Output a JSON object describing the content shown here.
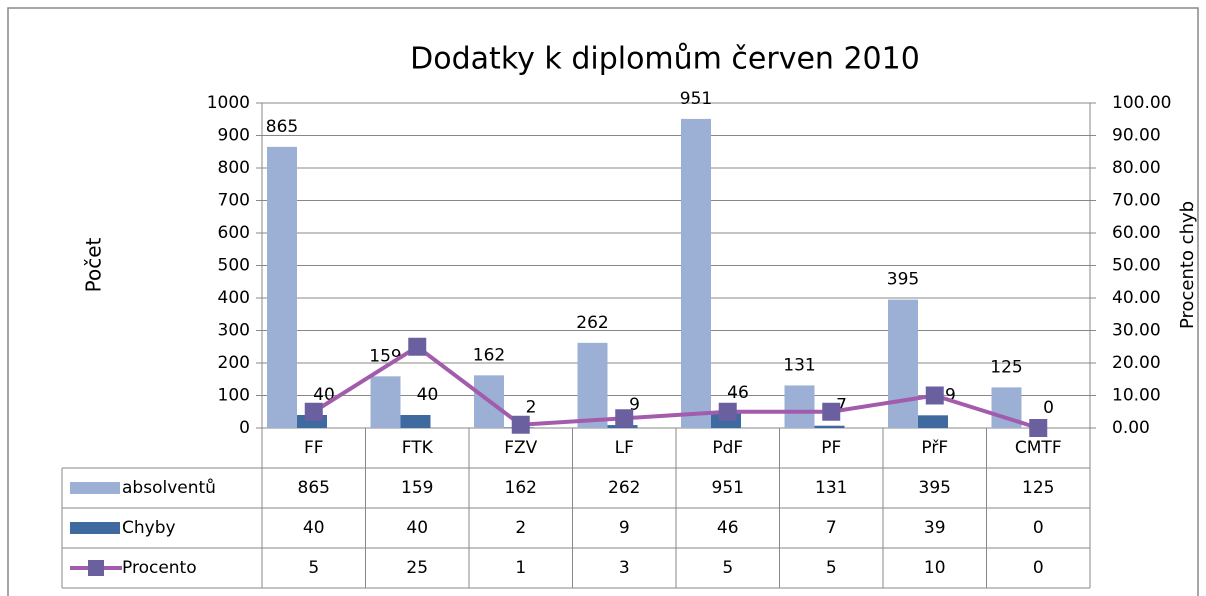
{
  "chart_data": {
    "type": "bar",
    "title": "Dodatky k diplomům červen 2010",
    "y_label": "Počet",
    "y2_label": "Procento chyb",
    "categories": [
      "FF",
      "FTK",
      "FZV",
      "LF",
      "PdF",
      "PF",
      "PřF",
      "CMTF"
    ],
    "series": [
      {
        "name": "absolventů",
        "type": "bar",
        "color": "#9bb0d4",
        "values": [
          865,
          159,
          162,
          262,
          951,
          131,
          395,
          125
        ]
      },
      {
        "name": "Chyby",
        "type": "bar",
        "color": "#3f6a9f",
        "values": [
          40,
          40,
          2,
          9,
          46,
          7,
          39,
          0
        ]
      },
      {
        "name": "Procento",
        "type": "line",
        "axis": "y2",
        "color": "#a35bab",
        "marker_color": "#6a60a0",
        "values": [
          5,
          25,
          1,
          3,
          5,
          5,
          10,
          0
        ]
      }
    ],
    "ylim": [
      0,
      1000
    ],
    "yticks": [
      0,
      100,
      200,
      300,
      400,
      500,
      600,
      700,
      800,
      900,
      1000
    ],
    "y2lim": [
      0,
      100
    ],
    "y2ticks": [
      {
        "value": 0,
        "label": "0.00"
      },
      {
        "value": 10,
        "label": "10.00"
      },
      {
        "value": 20,
        "label": "20.00"
      },
      {
        "value": 30,
        "label": "30.00"
      },
      {
        "value": 40,
        "label": "40.00"
      },
      {
        "value": 50,
        "label": "50.00"
      },
      {
        "value": 60,
        "label": "60.00"
      },
      {
        "value": 70,
        "label": "70.00"
      },
      {
        "value": 80,
        "label": "80.00"
      },
      {
        "value": 90,
        "label": "90.00"
      },
      {
        "value": 100,
        "label": "100.00"
      }
    ],
    "grid": true,
    "data_table": true
  }
}
